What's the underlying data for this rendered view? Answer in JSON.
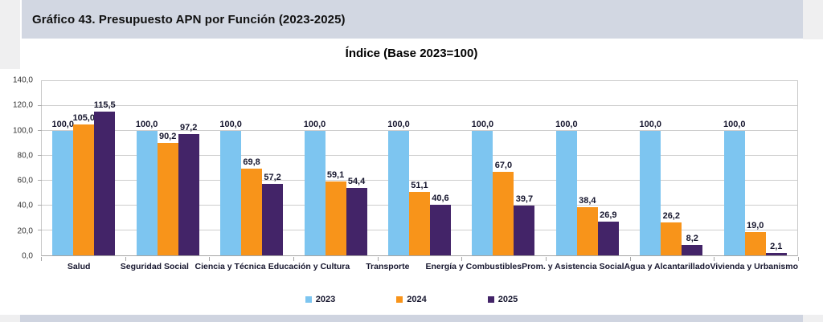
{
  "page": {
    "header_title": "Gráfico 43. Presupuesto APN por Función (2023-2025)"
  },
  "chart_data": {
    "type": "bar",
    "title": "Índice (Base 2023=100)",
    "categories": [
      "Salud",
      "Seguridad Social",
      "Ciencia y Técnica",
      "Educación y Cultura",
      "Transporte",
      "Energía y Combustibles",
      "Prom. y Asistencia Social",
      "Agua y Alcantarillado",
      "Vivienda y Urbanismo"
    ],
    "series": [
      {
        "name": "2023",
        "color": "#7dc5f0",
        "values": [
          100.0,
          100.0,
          100.0,
          100.0,
          100.0,
          100.0,
          100.0,
          100.0,
          100.0
        ],
        "labels": [
          "100,0",
          "100,0",
          "100,0",
          "100,0",
          "100,0",
          "100,0",
          "100,0",
          "100,0",
          "100,0"
        ]
      },
      {
        "name": "2024",
        "color": "#f8941a",
        "values": [
          105.0,
          90.2,
          69.8,
          59.1,
          51.1,
          67.0,
          38.4,
          26.2,
          19.0
        ],
        "labels": [
          "105,0",
          "90,2",
          "69,8",
          "59,1",
          "51,1",
          "67,0",
          "38,4",
          "26,2",
          "19,0"
        ]
      },
      {
        "name": "2025",
        "color": "#432468",
        "values": [
          115.5,
          97.2,
          57.2,
          54.4,
          40.6,
          39.7,
          26.9,
          8.2,
          2.1
        ],
        "labels": [
          "115,5",
          "97,2",
          "57,2",
          "54,4",
          "40,6",
          "39,7",
          "26,9",
          "8,2",
          "2,1"
        ]
      }
    ],
    "ylim": [
      0,
      140
    ],
    "ytick_step": 20,
    "ytick_labels": [
      "0,0",
      "20,0",
      "40,0",
      "60,0",
      "80,0",
      "100,0",
      "120,0",
      "140,0"
    ],
    "grid": "horizontal",
    "legend_position": "bottom"
  }
}
